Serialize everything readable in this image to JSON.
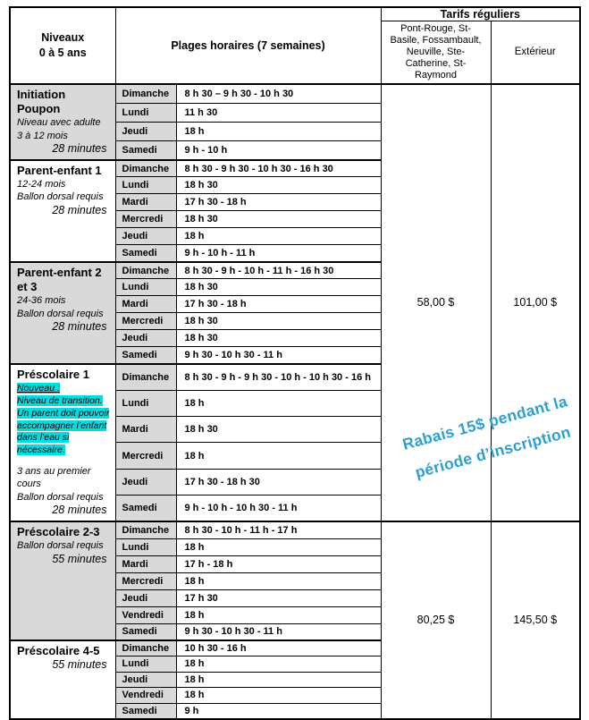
{
  "colors": {
    "row_shade": "#d9d9d9",
    "note_highlight": "#00dce0",
    "promo_text": "#2d9fd3"
  },
  "header": {
    "levels_line1": "Niveaux",
    "levels_line2": "0 à 5 ans",
    "schedule": "Plages horaires (7 semaines)",
    "tarifs": "Tarifs réguliers",
    "cities": "Pont-Rouge, St-Basile, Fossambault, Neuville, Ste-Catherine, St-Raymond",
    "exterior": "Extérieur"
  },
  "promo": {
    "line1": "Rabais 15$ pendant la",
    "line2": "période d’inscription"
  },
  "pricing": [
    {
      "cities_price": "58,00 $",
      "exterior_price": "101,00 $",
      "section_range": [
        0,
        3
      ]
    },
    {
      "cities_price": "80,25 $",
      "exterior_price": "145,50 $",
      "section_range": [
        4,
        5
      ]
    }
  ],
  "sections": [
    {
      "title": "Initiation Poupon",
      "notes": [
        "Niveau avec adulte",
        "3 à 12 mois"
      ],
      "duration": "28 minutes",
      "shaded": true,
      "schedule": [
        {
          "day": "Dimanche",
          "times": "8 h 30 – 9 h 30 - 10 h 30"
        },
        {
          "day": "Lundi",
          "times": "11 h 30"
        },
        {
          "day": "Jeudi",
          "times": "18 h"
        },
        {
          "day": "Samedi",
          "times": "9 h - 10 h"
        }
      ]
    },
    {
      "title": "Parent-enfant 1",
      "notes": [
        "12-24 mois",
        "Ballon dorsal requis"
      ],
      "duration": "28 minutes",
      "shaded": false,
      "schedule": [
        {
          "day": "Dimanche",
          "times": "8 h 30 - 9 h 30 - 10 h 30 - 16 h 30"
        },
        {
          "day": "Lundi",
          "times": "18 h 30"
        },
        {
          "day": "Mardi",
          "times": "17 h 30 - 18 h"
        },
        {
          "day": "Mercredi",
          "times": "18 h 30"
        },
        {
          "day": "Jeudi",
          "times": "18 h"
        },
        {
          "day": "Samedi",
          "times": "9 h - 10 h - 11 h"
        }
      ]
    },
    {
      "title": "Parent-enfant 2 et 3",
      "notes": [
        "24-36 mois",
        "Ballon dorsal requis"
      ],
      "duration": "28 minutes",
      "shaded": true,
      "schedule": [
        {
          "day": "Dimanche",
          "times": "8 h 30 - 9 h - 10 h - 11 h - 16 h 30"
        },
        {
          "day": "Lundi",
          "times": "18 h 30"
        },
        {
          "day": "Mardi",
          "times": "17 h 30 - 18 h"
        },
        {
          "day": "Mercredi",
          "times": "18 h 30"
        },
        {
          "day": "Jeudi",
          "times": "18 h 30"
        },
        {
          "day": "Samedi",
          "times": "9 h 30 - 10 h 30 - 11 h"
        }
      ]
    },
    {
      "title": "Préscolaire 1",
      "highlight_label": "Nouveau :",
      "highlight_note": "Niveau de transition. Un parent doit pouvoir accompagner l’enfant dans l’eau si nécessaire.",
      "notes": [
        "3 ans au premier cours",
        "Ballon dorsal requis"
      ],
      "notes_gap": true,
      "duration": "28 minutes",
      "shaded": false,
      "schedule": [
        {
          "day": "Dimanche",
          "times": "8 h 30 - 9 h - 9 h 30 - 10 h - 10 h 30 - 16 h"
        },
        {
          "day": "Lundi",
          "times": "18 h"
        },
        {
          "day": "Mardi",
          "times": "18 h 30"
        },
        {
          "day": "Mercredi",
          "times": "18 h"
        },
        {
          "day": "Jeudi",
          "times": "17 h 30 - 18 h 30"
        },
        {
          "day": "Samedi",
          "times": "9 h - 10 h - 10 h 30 - 11 h"
        }
      ]
    },
    {
      "title": "Préscolaire 2-3",
      "notes": [
        "Ballon dorsal requis"
      ],
      "duration": "55 minutes",
      "shaded": true,
      "schedule": [
        {
          "day": "Dimanche",
          "times": "8 h 30 - 10 h - 11 h - 17 h"
        },
        {
          "day": "Lundi",
          "times": "18 h"
        },
        {
          "day": "Mardi",
          "times": "17 h - 18 h"
        },
        {
          "day": "Mercredi",
          "times": "18 h"
        },
        {
          "day": "Jeudi",
          "times": "17 h 30"
        },
        {
          "day": "Vendredi",
          "times": "18 h"
        },
        {
          "day": "Samedi",
          "times": "9 h 30 - 10 h 30 - 11 h"
        }
      ]
    },
    {
      "title": "Préscolaire 4-5",
      "notes": [],
      "duration": "55 minutes",
      "shaded": false,
      "schedule": [
        {
          "day": "Dimanche",
          "times": "10 h 30 - 16 h"
        },
        {
          "day": "Lundi",
          "times": "18 h"
        },
        {
          "day": "Jeudi",
          "times": "18 h"
        },
        {
          "day": "Vendredi",
          "times": "18 h"
        },
        {
          "day": "Samedi",
          "times": "9 h"
        }
      ]
    }
  ]
}
